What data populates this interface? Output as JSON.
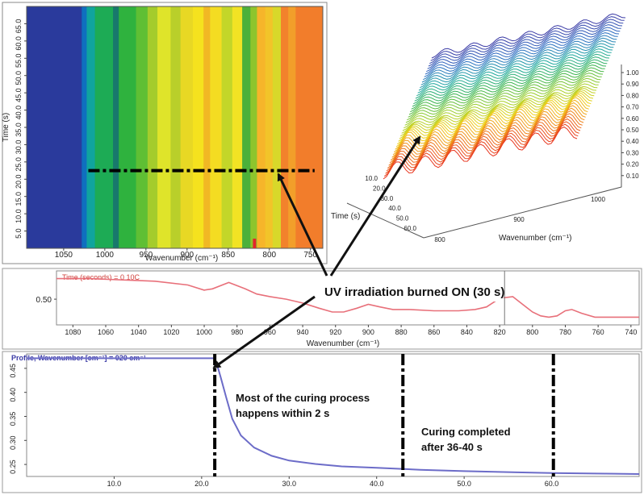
{
  "chart_data": [
    {
      "type": "heatmap",
      "xlabel": "Wavenumber (cm⁻¹)",
      "ylabel": "Time (s)",
      "x_ticks": [
        "1050",
        "1000",
        "950",
        "900",
        "850",
        "800",
        "750"
      ],
      "y_ticks": [
        "5.0",
        "10.0",
        "15.0",
        "20.0",
        "25.0",
        "30.0",
        "35.0",
        "40.0",
        "45.0",
        "50.0",
        "55.0",
        "60.0",
        "65.0"
      ],
      "xlim": [
        1095,
        735
      ],
      "ylim": [
        0,
        70
      ],
      "marker_time": 22.5,
      "marker_wavenumber": 818,
      "bands": [
        {
          "from": 1095,
          "to": 1028,
          "color": "#2a3a9c"
        },
        {
          "from": 1028,
          "to": 1022,
          "color": "#0f6fbf"
        },
        {
          "from": 1022,
          "to": 1012,
          "color": "#10a49e"
        },
        {
          "from": 1012,
          "to": 990,
          "color": "#1dab55"
        },
        {
          "from": 990,
          "to": 983,
          "color": "#18786c"
        },
        {
          "from": 983,
          "to": 962,
          "color": "#2fb23e"
        },
        {
          "from": 962,
          "to": 948,
          "color": "#5fbf34"
        },
        {
          "from": 948,
          "to": 936,
          "color": "#a4cc2c"
        },
        {
          "from": 936,
          "to": 920,
          "color": "#dfe42a"
        },
        {
          "from": 920,
          "to": 908,
          "color": "#b9cf2a"
        },
        {
          "from": 908,
          "to": 893,
          "color": "#e8d824"
        },
        {
          "from": 893,
          "to": 880,
          "color": "#f5e21e"
        },
        {
          "from": 880,
          "to": 872,
          "color": "#f1b824"
        },
        {
          "from": 872,
          "to": 858,
          "color": "#f4dc22"
        },
        {
          "from": 858,
          "to": 845,
          "color": "#c3d629"
        },
        {
          "from": 845,
          "to": 833,
          "color": "#f2e324"
        },
        {
          "from": 833,
          "to": 823,
          "color": "#4cb03a"
        },
        {
          "from": 823,
          "to": 815,
          "color": "#8ec52d"
        },
        {
          "from": 815,
          "to": 805,
          "color": "#f6b52a"
        },
        {
          "from": 805,
          "to": 796,
          "color": "#f2c429"
        },
        {
          "from": 796,
          "to": 786,
          "color": "#d8d82a"
        },
        {
          "from": 786,
          "to": 777,
          "color": "#f2822c"
        },
        {
          "from": 777,
          "to": 768,
          "color": "#f29f2a"
        },
        {
          "from": 768,
          "to": 735,
          "color": "#f27d2b"
        }
      ]
    },
    {
      "type": "line",
      "title": "",
      "xlabel": "Time (s)",
      "ylabel": "Wavenumber (cm⁻¹)",
      "zlabel": "",
      "x_ticks": [
        "10.0",
        "20.0",
        "30.0",
        "40.0",
        "50.0",
        "60.0"
      ],
      "y_ticks": [
        "800",
        "900",
        "1000"
      ],
      "z_ticks": [
        "0.10",
        "0.20",
        "0.30",
        "0.40",
        "0.50",
        "0.60",
        "0.70",
        "0.80",
        "0.90",
        "1.00"
      ],
      "colors": [
        "#e8361f",
        "#f08a1c",
        "#f0d21f",
        "#a8d12a",
        "#3bb54a",
        "#1ea9a0",
        "#2c6ec4",
        "#3a3aa5"
      ]
    },
    {
      "type": "line",
      "legend": "Time (seconds) = 0 10C",
      "xlabel": "Wavenumber (cm⁻¹)",
      "xlim": [
        1090,
        735
      ],
      "x_ticks": [
        1080,
        1060,
        1040,
        1020,
        1000,
        980,
        960,
        940,
        920,
        900,
        880,
        860,
        840,
        820,
        800,
        780,
        760,
        740
      ],
      "y_ticks": [
        "0.50"
      ],
      "cursor_x": 817,
      "color": "#e8707a",
      "series": [
        {
          "x": [
            1090,
            1070,
            1050,
            1030,
            1010,
            1000,
            995,
            985,
            975,
            968,
            960,
            950,
            940,
            930,
            922,
            915,
            907,
            900,
            893,
            885,
            875,
            860,
            845,
            835,
            828,
            822,
            818,
            812,
            806,
            800,
            795,
            790,
            785,
            780,
            776,
            770,
            762,
            755,
            745,
            735
          ],
          "y": [
            0.66,
            0.66,
            0.65,
            0.64,
            0.61,
            0.57,
            0.58,
            0.63,
            0.58,
            0.54,
            0.52,
            0.5,
            0.47,
            0.43,
            0.4,
            0.4,
            0.43,
            0.46,
            0.44,
            0.42,
            0.42,
            0.41,
            0.41,
            0.42,
            0.44,
            0.49,
            0.51,
            0.52,
            0.46,
            0.4,
            0.37,
            0.36,
            0.37,
            0.41,
            0.42,
            0.39,
            0.36,
            0.36,
            0.36,
            0.36
          ]
        }
      ]
    },
    {
      "type": "line",
      "legend": "Profile, Wavenumber [cm⁻¹] = 020 cm⁻¹",
      "xlim": [
        0,
        70
      ],
      "ylim": [
        0.225,
        0.48
      ],
      "x_ticks": [
        "10.0",
        "20.0",
        "30.0",
        "40.0",
        "50.0",
        "60.0"
      ],
      "y_ticks": [
        "0.25",
        "0.30",
        "0.35",
        "0.40",
        "0.45"
      ],
      "color": "#6c6cc8",
      "vlines": [
        21.5,
        43,
        60.2
      ],
      "series": [
        {
          "x": [
            0,
            10,
            20,
            21.4,
            21.8,
            22.2,
            22.8,
            23.5,
            24.5,
            26,
            28,
            30,
            33,
            36,
            40,
            45,
            50,
            55,
            60,
            65,
            70
          ],
          "y": [
            0.471,
            0.471,
            0.471,
            0.471,
            0.455,
            0.43,
            0.39,
            0.345,
            0.31,
            0.285,
            0.268,
            0.258,
            0.251,
            0.246,
            0.243,
            0.239,
            0.236,
            0.234,
            0.232,
            0.231,
            0.23
          ]
        }
      ]
    }
  ],
  "annotations": {
    "uv": "UV irradiation burned ON (30 s)",
    "curing_fast_line1": "Most of the curing process",
    "curing_fast_line2": "happens within 2 s",
    "curing_done_line1": "Curing completed",
    "curing_done_line2": "after 36-40 s"
  }
}
